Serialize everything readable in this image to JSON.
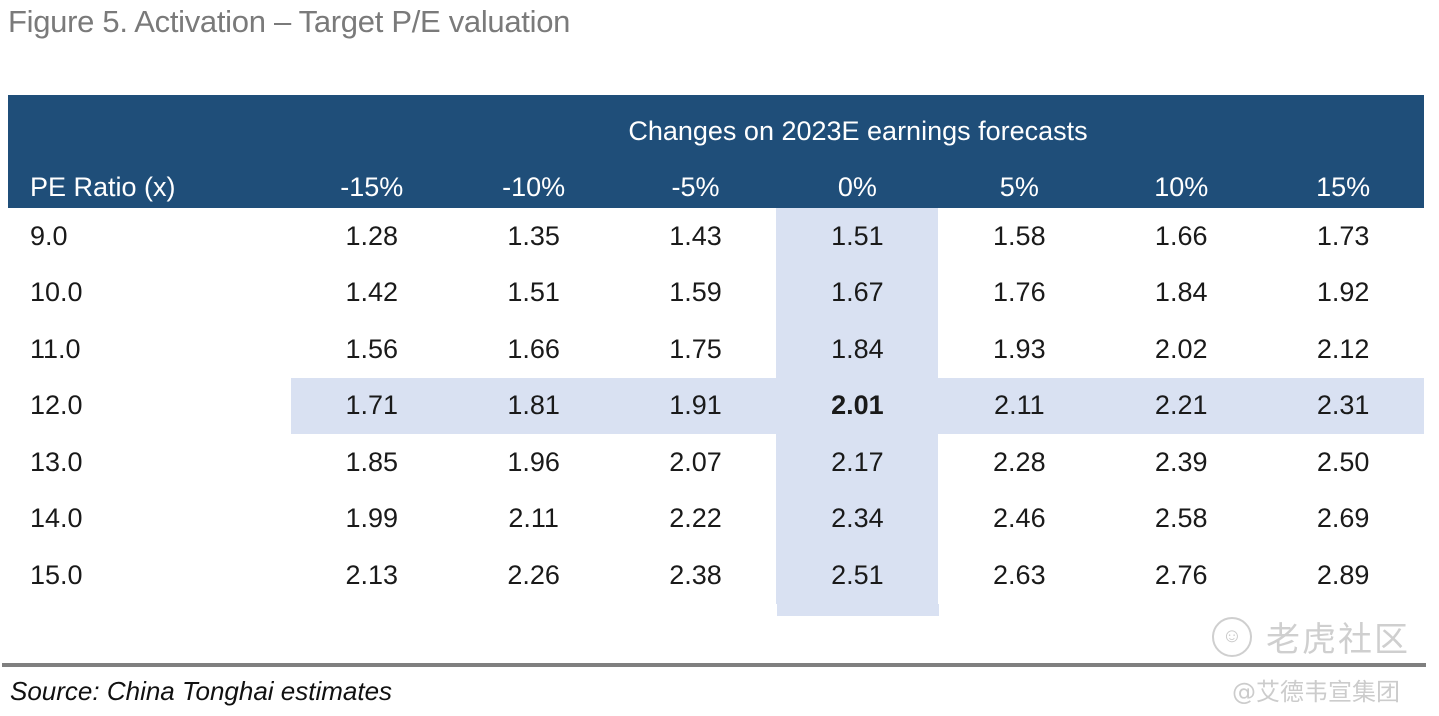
{
  "figure": {
    "title": "Figure 5. Activation – Target P/E valuation",
    "source": "Source: China Tonghai estimates"
  },
  "table": {
    "super_header": "Changes on 2023E earnings forecasts",
    "row_header_label": "PE Ratio (x)",
    "columns": [
      "-15%",
      "-10%",
      "-5%",
      "0%",
      "5%",
      "10%",
      "15%"
    ],
    "highlight_column": "0%",
    "highlight_row": "12.0",
    "highlight_color": "#d9e1f2",
    "header_color": "#1f4e79",
    "rows": [
      {
        "pe": "9.0",
        "values": [
          "1.28",
          "1.35",
          "1.43",
          "1.51",
          "1.58",
          "1.66",
          "1.73"
        ]
      },
      {
        "pe": "10.0",
        "values": [
          "1.42",
          "1.51",
          "1.59",
          "1.67",
          "1.76",
          "1.84",
          "1.92"
        ]
      },
      {
        "pe": "11.0",
        "values": [
          "1.56",
          "1.66",
          "1.75",
          "1.84",
          "1.93",
          "2.02",
          "2.12"
        ]
      },
      {
        "pe": "12.0",
        "values": [
          "1.71",
          "1.81",
          "1.91",
          "2.01",
          "2.11",
          "2.21",
          "2.31"
        ]
      },
      {
        "pe": "13.0",
        "values": [
          "1.85",
          "1.96",
          "2.07",
          "2.17",
          "2.28",
          "2.39",
          "2.50"
        ]
      },
      {
        "pe": "14.0",
        "values": [
          "1.99",
          "2.11",
          "2.22",
          "2.34",
          "2.46",
          "2.58",
          "2.69"
        ]
      },
      {
        "pe": "15.0",
        "values": [
          "2.13",
          "2.26",
          "2.38",
          "2.51",
          "2.63",
          "2.76",
          "2.89"
        ]
      }
    ]
  },
  "watermark": {
    "logo_icon": "tiger-community-logo-icon",
    "brand": "老虎社区",
    "author": "@艾德韦宣集团"
  }
}
